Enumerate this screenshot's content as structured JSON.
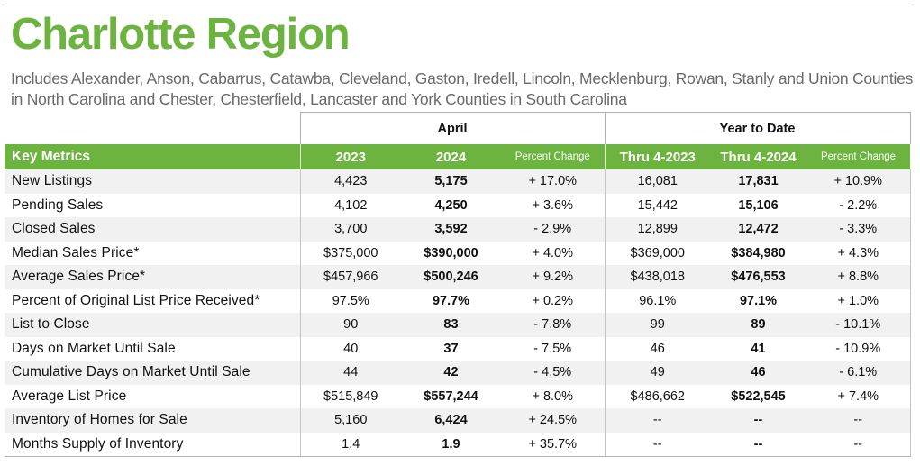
{
  "header": {
    "title": "Charlotte Region",
    "subtitle_line1": "Includes Alexander, Anson, Cabarrus, Catawba, Cleveland, Gaston, Iredell, Lincoln, Mecklenburg, Rowan, Stanly and Union Counties",
    "subtitle_line2": "in North Carolina and Chester, Chesterfield, Lancaster and York Counties in South Carolina"
  },
  "groups": {
    "april": "April",
    "ytd": "Year to Date"
  },
  "columns": {
    "key_metrics": "Key Metrics",
    "apr_2023": "2023",
    "apr_2024": "2024",
    "apr_pct": "Percent Change",
    "ytd_2023": "Thru 4-2023",
    "ytd_2024": "Thru 4-2024",
    "ytd_pct": "Percent Change"
  },
  "rows": [
    {
      "metric": "New Listings",
      "apr_2023": "4,423",
      "apr_2024": "5,175",
      "apr_pct": "+ 17.0%",
      "ytd_2023": "16,081",
      "ytd_2024": "17,831",
      "ytd_pct": "+ 10.9%"
    },
    {
      "metric": "Pending Sales",
      "apr_2023": "4,102",
      "apr_2024": "4,250",
      "apr_pct": "+ 3.6%",
      "ytd_2023": "15,442",
      "ytd_2024": "15,106",
      "ytd_pct": "- 2.2%"
    },
    {
      "metric": "Closed Sales",
      "apr_2023": "3,700",
      "apr_2024": "3,592",
      "apr_pct": "- 2.9%",
      "ytd_2023": "12,899",
      "ytd_2024": "12,472",
      "ytd_pct": "- 3.3%"
    },
    {
      "metric": "Median Sales Price*",
      "apr_2023": "$375,000",
      "apr_2024": "$390,000",
      "apr_pct": "+ 4.0%",
      "ytd_2023": "$369,000",
      "ytd_2024": "$384,980",
      "ytd_pct": "+ 4.3%"
    },
    {
      "metric": "Average Sales Price*",
      "apr_2023": "$457,966",
      "apr_2024": "$500,246",
      "apr_pct": "+ 9.2%",
      "ytd_2023": "$438,018",
      "ytd_2024": "$476,553",
      "ytd_pct": "+ 8.8%"
    },
    {
      "metric": "Percent of Original List Price Received*",
      "apr_2023": "97.5%",
      "apr_2024": "97.7%",
      "apr_pct": "+ 0.2%",
      "ytd_2023": "96.1%",
      "ytd_2024": "97.1%",
      "ytd_pct": "+ 1.0%"
    },
    {
      "metric": "List to Close",
      "apr_2023": "90",
      "apr_2024": "83",
      "apr_pct": "- 7.8%",
      "ytd_2023": "99",
      "ytd_2024": "89",
      "ytd_pct": "- 10.1%"
    },
    {
      "metric": "Days on Market Until Sale",
      "apr_2023": "40",
      "apr_2024": "37",
      "apr_pct": "- 7.5%",
      "ytd_2023": "46",
      "ytd_2024": "41",
      "ytd_pct": "- 10.9%"
    },
    {
      "metric": "Cumulative Days on Market Until Sale",
      "apr_2023": "44",
      "apr_2024": "42",
      "apr_pct": "- 4.5%",
      "ytd_2023": "49",
      "ytd_2024": "46",
      "ytd_pct": "- 6.1%"
    },
    {
      "metric": "Average List Price",
      "apr_2023": "$515,849",
      "apr_2024": "$557,244",
      "apr_pct": "+ 8.0%",
      "ytd_2023": "$486,662",
      "ytd_2024": "$522,545",
      "ytd_pct": "+ 7.4%"
    },
    {
      "metric": "Inventory of Homes for Sale",
      "apr_2023": "5,160",
      "apr_2024": "6,424",
      "apr_pct": "+ 24.5%",
      "ytd_2023": "--",
      "ytd_2024": "--",
      "ytd_pct": "--"
    },
    {
      "metric": "Months Supply of Inventory",
      "apr_2023": "1.4",
      "apr_2024": "1.9",
      "apr_pct": "+ 35.7%",
      "ytd_2023": "--",
      "ytd_2024": "--",
      "ytd_pct": "--"
    }
  ],
  "colors": {
    "accent_green": "#6cb33f",
    "subtitle_gray": "#6a6a6a"
  }
}
